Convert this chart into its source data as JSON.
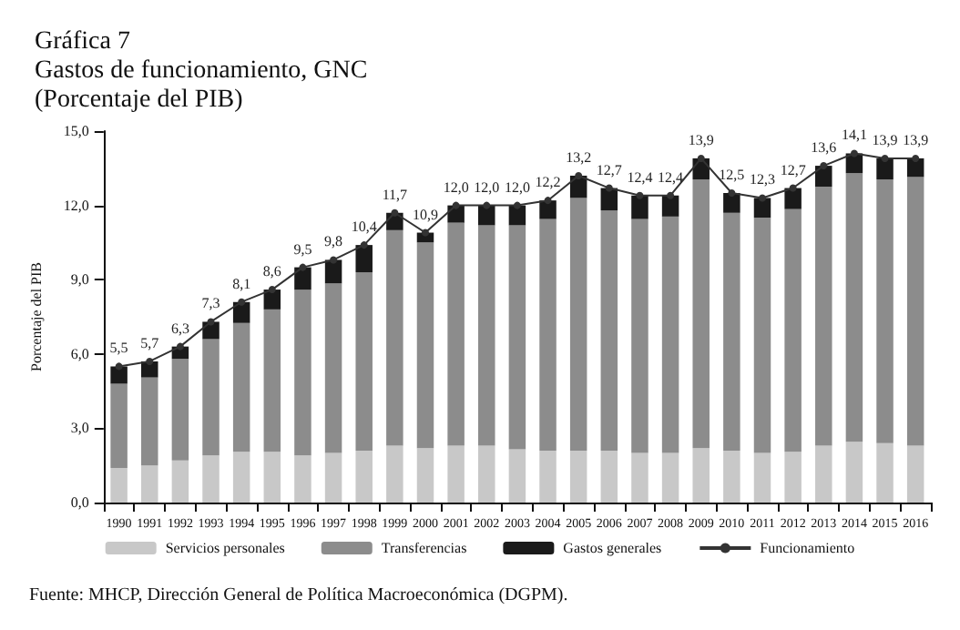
{
  "chart_data": {
    "type": "bar",
    "stacked": true,
    "title": "Gráfica 7\nGastos de funcionamiento, GNC\n(Porcentaje del PIB)",
    "ylabel": "Porcentaje del PIB",
    "annotations": [
      "Fuente: MHCP, Dirección General de Política Macroeconómica (DGPM)."
    ],
    "categories": [
      "1990",
      "1991",
      "1992",
      "1993",
      "1994",
      "1995",
      "1996",
      "1997",
      "1998",
      "1999",
      "2000",
      "2001",
      "2002",
      "2003",
      "2004",
      "2005",
      "2006",
      "2007",
      "2008",
      "2009",
      "2010",
      "2011",
      "2012",
      "2013",
      "2014",
      "2015",
      "2016"
    ],
    "series": [
      {
        "name": "Servicios personales",
        "color": "#c8c8c8",
        "values": [
          1.4,
          1.5,
          1.7,
          1.9,
          2.05,
          2.05,
          1.9,
          2.0,
          2.1,
          2.3,
          2.2,
          2.3,
          2.3,
          2.15,
          2.1,
          2.1,
          2.1,
          2.0,
          2.0,
          2.2,
          2.1,
          2.0,
          2.05,
          2.3,
          2.45,
          2.4,
          2.3
        ]
      },
      {
        "name": "Transferencias",
        "color": "#8c8c8c",
        "values": [
          3.4,
          3.55,
          4.1,
          4.7,
          5.2,
          5.75,
          6.7,
          6.85,
          7.2,
          8.7,
          8.3,
          9.0,
          8.9,
          9.05,
          9.35,
          10.2,
          9.7,
          9.45,
          9.55,
          10.85,
          9.6,
          9.5,
          9.8,
          10.45,
          10.85,
          10.65,
          10.85
        ]
      },
      {
        "name": "Gastos generales",
        "color": "#1a1a1a",
        "values": [
          0.7,
          0.65,
          0.5,
          0.7,
          0.85,
          0.8,
          0.9,
          0.95,
          1.1,
          0.7,
          0.4,
          0.7,
          0.8,
          0.8,
          0.75,
          0.9,
          0.9,
          0.95,
          0.85,
          0.85,
          0.8,
          0.8,
          0.85,
          0.85,
          0.8,
          0.85,
          0.75
        ]
      },
      {
        "name": "Funcionamiento",
        "type": "line",
        "color": "#333333",
        "marker": "circle",
        "values": [
          5.5,
          5.7,
          6.3,
          7.3,
          8.1,
          8.6,
          9.5,
          9.8,
          10.4,
          11.7,
          10.9,
          12.0,
          12.0,
          12.0,
          12.2,
          13.2,
          12.7,
          12.4,
          12.4,
          13.9,
          12.5,
          12.3,
          12.7,
          13.6,
          14.1,
          13.9,
          13.9
        ],
        "value_labels": [
          "5,5",
          "5,7",
          "6,3",
          "7,3",
          "8,1",
          "8,6",
          "9,5",
          "9,8",
          "10,4",
          "11,7",
          "10,9",
          "12,0",
          "12,0",
          "12,0",
          "12,2",
          "13,2",
          "12,7",
          "12,4",
          "12,4",
          "13,9",
          "12,5",
          "12,3",
          "12,7",
          "13,6",
          "14,1",
          "13,9",
          "13,9"
        ]
      }
    ],
    "ylim": [
      0,
      15
    ],
    "yticks": [
      {
        "value": 0,
        "label": "0,0"
      },
      {
        "value": 3,
        "label": "3,0"
      },
      {
        "value": 6,
        "label": "6,0"
      },
      {
        "value": 9,
        "label": "9,0"
      },
      {
        "value": 12,
        "label": "12,0"
      },
      {
        "value": 15,
        "label": "15,0"
      }
    ],
    "grid": false,
    "legend": "bottom"
  }
}
